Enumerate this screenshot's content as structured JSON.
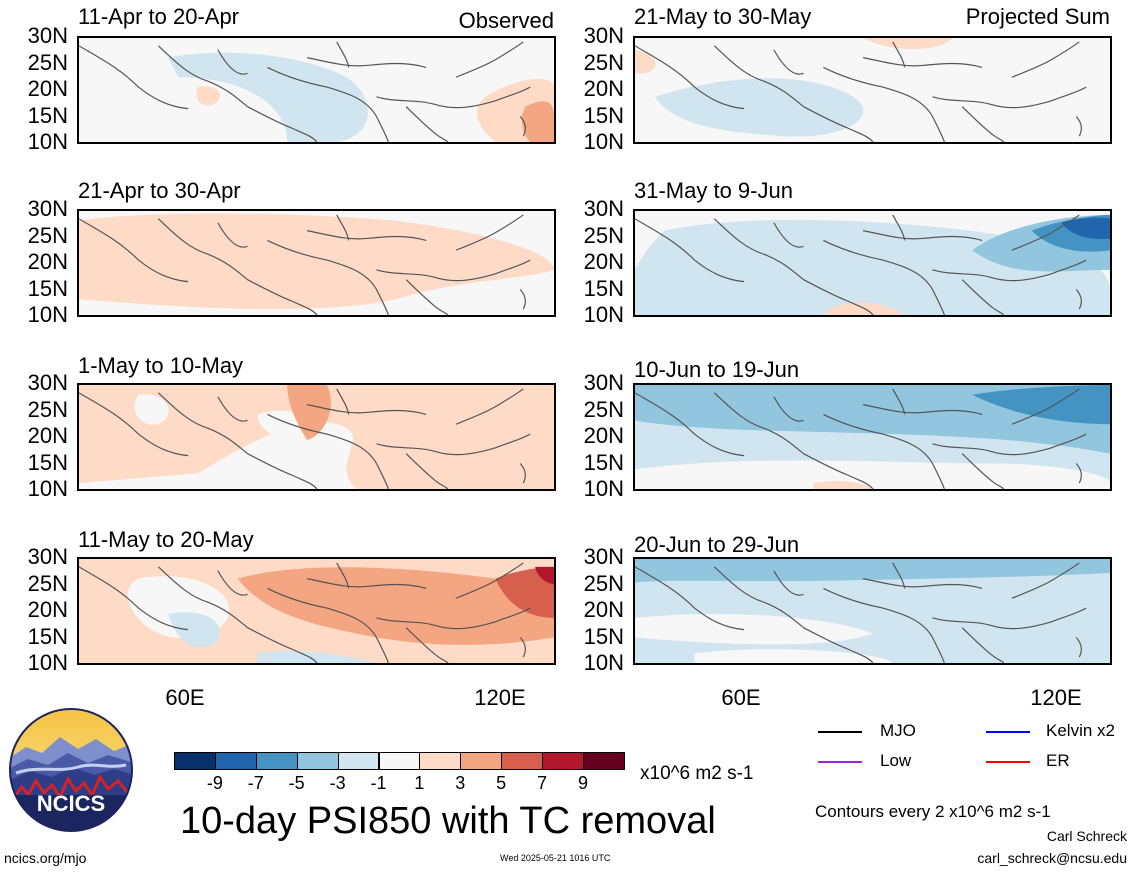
{
  "panels": [
    {
      "title": "11-Apr to 20-Apr",
      "tag": "Observed",
      "colors": {
        "base": "#f7f7f7"
      }
    },
    {
      "title": "21-May to 30-May",
      "tag": "Projected Sum"
    },
    {
      "title": "21-Apr to 30-Apr",
      "tag": ""
    },
    {
      "title": "31-May to 9-Jun",
      "tag": ""
    },
    {
      "title": "1-May to 10-May",
      "tag": ""
    },
    {
      "title": "10-Jun to 19-Jun",
      "tag": ""
    },
    {
      "title": "11-May to 20-May",
      "tag": ""
    },
    {
      "title": "20-Jun to 29-Jun",
      "tag": ""
    }
  ],
  "lat_labels": [
    "30N",
    "25N",
    "20N",
    "15N",
    "10N"
  ],
  "lon_labels": [
    "60E",
    "120E"
  ],
  "colorbar": {
    "colors": [
      "#08306b",
      "#2166ac",
      "#4393c3",
      "#92c5de",
      "#d1e5f0",
      "#f7f7f7",
      "#fddbc7",
      "#f4a582",
      "#d6604d",
      "#b2182b",
      "#67001f"
    ],
    "labels": [
      "-9",
      "-7",
      "-5",
      "-3",
      "-1",
      "1",
      "3",
      "5",
      "7",
      "9"
    ],
    "units": "x10^6 m2 s-1"
  },
  "main_title": "10-day PSI850 with TC removal",
  "legend": [
    {
      "label": "MJO",
      "color": "#000000"
    },
    {
      "label": "Kelvin x2",
      "color": "#0000ff"
    },
    {
      "label": "Low",
      "color": "#a020f0"
    },
    {
      "label": "ER",
      "color": "#ff0000"
    }
  ],
  "contours_note": "Contours every 2 x10^6 m2 s-1",
  "author": "Carl Schreck",
  "email": "carl_schreck@ncsu.edu",
  "site": "ncics.org/mjo",
  "timestamp": "Wed 2025-05-21 1016 UTC",
  "logo_text": "NCICS"
}
